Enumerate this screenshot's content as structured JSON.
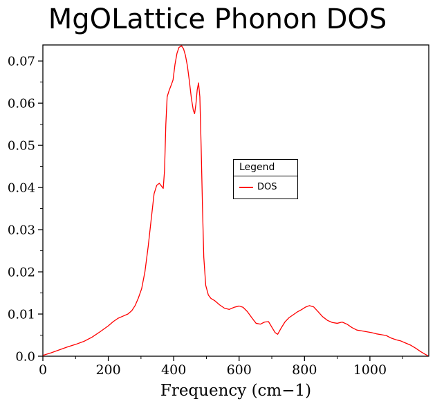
{
  "page": {
    "background": "#ffffff"
  },
  "chart_data": {
    "type": "line",
    "title": "MgOLattice Phonon DOS",
    "xlabel": "Frequency (cm−1)",
    "ylabel": "",
    "xlim": [
      0,
      1180
    ],
    "ylim": [
      0,
      0.0738
    ],
    "grid": false,
    "axis_color": "#000000",
    "x_tick_values": [
      0,
      200,
      400,
      600,
      800,
      1000
    ],
    "x_tick_labels": [
      "0",
      "200",
      "400",
      "600",
      "800",
      "1000"
    ],
    "x_minor_step": 100,
    "y_tick_values": [
      0,
      0.01,
      0.02,
      0.03,
      0.04,
      0.05,
      0.06,
      0.07
    ],
    "y_tick_labels": [
      "0.0",
      "0.01",
      "0.02",
      "0.03",
      "0.04",
      "0.05",
      "0.06",
      "0.07"
    ],
    "y_minor_step": 0.005,
    "legend": {
      "title": "Legend",
      "position": "center-right",
      "entries": [
        {
          "label": "DOS",
          "color": "#ff0000"
        }
      ]
    },
    "series": [
      {
        "name": "DOS",
        "color": "#ff0000",
        "x": [
          0,
          25,
          50,
          75,
          100,
          125,
          150,
          175,
          200,
          215,
          230,
          245,
          260,
          272,
          282,
          292,
          302,
          312,
          322,
          332,
          340,
          348,
          356,
          364,
          368,
          372,
          376,
          380,
          386,
          392,
          398,
          404,
          410,
          416,
          424,
          430,
          436,
          442,
          448,
          454,
          460,
          464,
          468,
          472,
          476,
          480,
          484,
          488,
          492,
          498,
          506,
          514,
          525,
          540,
          555,
          570,
          585,
          600,
          612,
          625,
          640,
          652,
          665,
          678,
          690,
          700,
          710,
          718,
          728,
          740,
          752,
          765,
          778,
          790,
          802,
          815,
          828,
          840,
          855,
          870,
          885,
          900,
          915,
          930,
          945,
          960,
          975,
          990,
          1005,
          1020,
          1035,
          1050,
          1065,
          1080,
          1095,
          1110,
          1125,
          1140,
          1155,
          1168,
          1178
        ],
        "y": [
          0.0002,
          0.0008,
          0.0015,
          0.0022,
          0.0028,
          0.0035,
          0.0045,
          0.0058,
          0.0072,
          0.0082,
          0.009,
          0.0095,
          0.01,
          0.0108,
          0.012,
          0.0138,
          0.016,
          0.02,
          0.026,
          0.033,
          0.0385,
          0.0405,
          0.041,
          0.0402,
          0.0398,
          0.044,
          0.055,
          0.0615,
          0.063,
          0.0642,
          0.0655,
          0.0692,
          0.0718,
          0.0732,
          0.0736,
          0.0729,
          0.0713,
          0.0688,
          0.0652,
          0.0612,
          0.0583,
          0.0575,
          0.0598,
          0.0632,
          0.0648,
          0.0615,
          0.0495,
          0.0355,
          0.0235,
          0.0168,
          0.0145,
          0.0137,
          0.0132,
          0.0122,
          0.0114,
          0.0111,
          0.0116,
          0.0119,
          0.0116,
          0.0106,
          0.009,
          0.0078,
          0.0076,
          0.0081,
          0.0082,
          0.0069,
          0.0056,
          0.0052,
          0.0066,
          0.0081,
          0.0091,
          0.0098,
          0.0105,
          0.011,
          0.0116,
          0.012,
          0.0117,
          0.0107,
          0.0094,
          0.0085,
          0.008,
          0.0078,
          0.0081,
          0.0076,
          0.0068,
          0.0062,
          0.006,
          0.0058,
          0.0056,
          0.0053,
          0.0051,
          0.0049,
          0.0043,
          0.0039,
          0.0036,
          0.0031,
          0.0026,
          0.0019,
          0.0011,
          0.0005,
          0.0001
        ]
      }
    ]
  }
}
